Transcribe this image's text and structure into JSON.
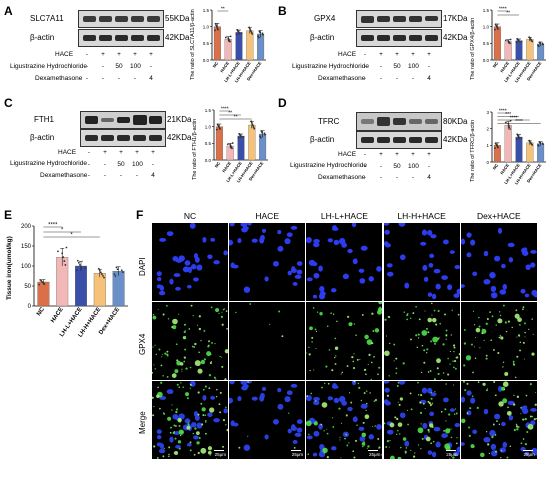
{
  "panels": {
    "A": {
      "letter": "A",
      "blot_labels": [
        "SLC7A11",
        "β-actin"
      ],
      "kda_labels": [
        "55KDa",
        "42KDa"
      ],
      "conditions": [
        "HACE",
        "Ligustrazine Hydrochloride",
        "Dexamethasone"
      ],
      "signs": [
        [
          "-",
          "+",
          "+",
          "+",
          "+"
        ],
        [
          "-",
          "-",
          "50",
          "100",
          "-"
        ],
        [
          "-",
          "-",
          "-",
          "-",
          "4"
        ]
      ],
      "ylabel": "The ratio of SLC7A11/β-actin"
    },
    "B": {
      "letter": "B",
      "blot_labels": [
        "GPX4",
        "β-actin"
      ],
      "kda_labels": [
        "17KDa",
        "42KDa"
      ],
      "conditions": [
        "HACE",
        "Ligustrazine Hydrochloride",
        "Dexamethasone"
      ],
      "signs": [
        [
          "-",
          "+",
          "+",
          "+",
          "+"
        ],
        [
          "-",
          "-",
          "50",
          "100",
          "-"
        ],
        [
          "-",
          "-",
          "-",
          "-",
          "4"
        ]
      ],
      "ylabel": "The ratio of GPX4/β-actin"
    },
    "C": {
      "letter": "C",
      "blot_labels": [
        "FTH1",
        "β-actin"
      ],
      "kda_labels": [
        "21KDa",
        "42KDa"
      ],
      "conditions": [
        "HACE",
        "Ligustrazine Hydrochloride",
        "Dexamethasone"
      ],
      "signs": [
        [
          "-",
          "+",
          "+",
          "+",
          "+"
        ],
        [
          "-",
          "-",
          "50",
          "100",
          "-"
        ],
        [
          "-",
          "-",
          "-",
          "-",
          "4"
        ]
      ],
      "ylabel": "The ratio of FTH1/β-actin"
    },
    "D": {
      "letter": "D",
      "blot_labels": [
        "TFRC",
        "β-actin"
      ],
      "kda_labels": [
        "80KDa",
        "42KDa"
      ],
      "conditions": [
        "HACE",
        "Ligustrazine Hydrochloride",
        "Dexamethasone"
      ],
      "signs": [
        [
          "-",
          "+",
          "+",
          "+",
          "+"
        ],
        [
          "-",
          "-",
          "50",
          "100",
          "-"
        ],
        [
          "-",
          "-",
          "-",
          "-",
          "4"
        ]
      ],
      "ylabel": "The ratio of TFRC/β-actin"
    },
    "E": {
      "letter": "E",
      "ylabel": "Tissue iron(umol/kg)"
    },
    "F": {
      "letter": "F",
      "columns": [
        "NC",
        "HACE",
        "LH-L+HACE",
        "LH-H+HACE",
        "Dex+HACE"
      ],
      "rows": [
        "DAPI",
        "GPX4",
        "Merge"
      ],
      "scale_label": "25μm"
    }
  },
  "chart_data": [
    {
      "id": "A",
      "type": "bar",
      "categories": [
        "NC",
        "HACE",
        "LH-L+HACE",
        "LH-H+HACE",
        "Dex+HACE"
      ],
      "values": [
        1.0,
        0.62,
        0.83,
        0.88,
        0.78
      ],
      "errors": [
        0.1,
        0.08,
        0.07,
        0.09,
        0.1
      ],
      "ylim": [
        0,
        1.5
      ],
      "yticks": [
        0.0,
        0.5,
        1.0,
        1.5
      ],
      "colors": [
        "#d9704a",
        "#f2b8b8",
        "#3a4fa8",
        "#f6c27a",
        "#6a8fc9"
      ],
      "significance": [
        "**"
      ]
    },
    {
      "id": "B",
      "type": "bar",
      "categories": [
        "NC",
        "HACE",
        "LH-L+HACE",
        "LH-H+HACE",
        "Dex+HACE"
      ],
      "values": [
        1.0,
        0.55,
        0.58,
        0.62,
        0.48
      ],
      "errors": [
        0.08,
        0.06,
        0.05,
        0.06,
        0.06
      ],
      "ylim": [
        0,
        1.5
      ],
      "yticks": [
        0.0,
        0.5,
        1.0,
        1.5
      ],
      "colors": [
        "#d9704a",
        "#f2b8b8",
        "#3a4fa8",
        "#f6c27a",
        "#6a8fc9"
      ],
      "significance": [
        "****",
        "**"
      ]
    },
    {
      "id": "C",
      "type": "bar",
      "categories": [
        "NC",
        "HACE",
        "LH-L+HACE",
        "LH-H+HACE",
        "Dex+HACE"
      ],
      "values": [
        1.0,
        0.42,
        0.72,
        1.05,
        0.78
      ],
      "errors": [
        0.08,
        0.08,
        0.06,
        0.1,
        0.1
      ],
      "ylim": [
        0,
        1.5
      ],
      "yticks": [
        0.0,
        0.5,
        1.0,
        1.5
      ],
      "colors": [
        "#d9704a",
        "#f2b8b8",
        "#3a4fa8",
        "#f6c27a",
        "#6a8fc9"
      ],
      "significance": [
        "****",
        "**",
        "**"
      ]
    },
    {
      "id": "D",
      "type": "bar",
      "categories": [
        "NC",
        "HACE",
        "LH-L+HACE",
        "LH-H+HACE",
        "Dex+HACE"
      ],
      "values": [
        1.0,
        2.2,
        1.5,
        1.15,
        1.1
      ],
      "errors": [
        0.15,
        0.25,
        0.15,
        0.12,
        0.12
      ],
      "ylim": [
        0,
        3
      ],
      "yticks": [
        0,
        1,
        2,
        3
      ],
      "colors": [
        "#d9704a",
        "#f2b8b8",
        "#3a4fa8",
        "#f6c27a",
        "#6a8fc9"
      ],
      "significance": [
        "****",
        "***",
        "****",
        "****"
      ]
    },
    {
      "id": "E",
      "type": "bar",
      "categories": [
        "NC",
        "HACE",
        "LH-L+HACE",
        "LH-H+HACE",
        "Dex+HACE"
      ],
      "values": [
        60,
        122,
        100,
        82,
        87
      ],
      "errors": [
        6,
        22,
        12,
        10,
        11
      ],
      "ylim": [
        0,
        200
      ],
      "yticks": [
        0,
        50,
        100,
        150,
        200
      ],
      "colors": [
        "#d9704a",
        "#f2b8b8",
        "#3a4fa8",
        "#f6c27a",
        "#6a8fc9"
      ],
      "significance": [
        "****",
        "*",
        "*"
      ]
    }
  ]
}
